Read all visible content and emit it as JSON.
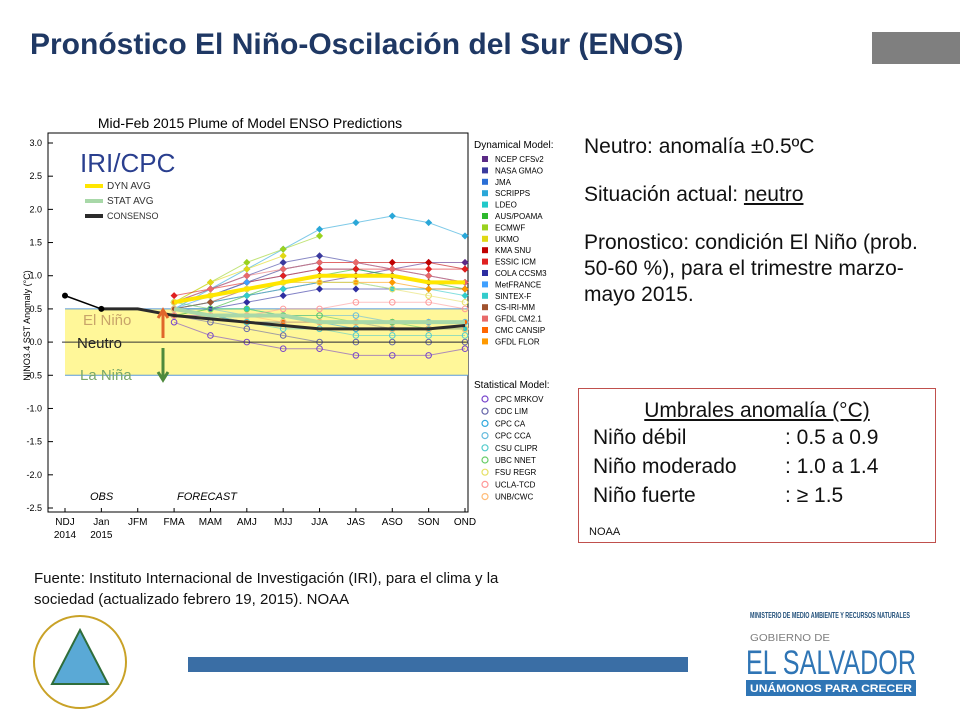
{
  "header": {
    "title": "Pronóstico El Niño-Oscilación del Sur (ENOS)"
  },
  "chart_data": {
    "type": "line",
    "title": "Mid-Feb 2015 Plume of Model ENSO Predictions",
    "y_label": "NINO3.4 SST Anomaly (°C)",
    "categories": [
      "NDJ",
      "Jan",
      "JFM",
      "FMA",
      "MAM",
      "AMJ",
      "MJJ",
      "JJA",
      "JAS",
      "ASO",
      "SON",
      "OND"
    ],
    "year_labels": [
      "2014",
      "2015"
    ],
    "ylim": [
      -2.5,
      3.0
    ],
    "yticks": [
      {
        "value": 3,
        "label": "3.0"
      },
      2.5,
      {
        "value": 2,
        "label": "2.0"
      },
      1.5,
      {
        "value": 1,
        "label": "1.0"
      },
      0.5,
      {
        "value": 0,
        "label": "0.0"
      },
      -0.5,
      {
        "value": -1,
        "label": "-1.0"
      },
      -1.5,
      {
        "value": -2,
        "label": "-2.0"
      },
      -2.5
    ],
    "neutral_band": [
      -0.5,
      0.5
    ],
    "band_color": "#fff799",
    "band_labels": {
      "el_nino": "El Niño",
      "neutro": "Neutro",
      "la_nina": "La Niña"
    },
    "logo_text": "IRI/CPC",
    "period_labels": {
      "obs": "OBS",
      "forecast": "FORECAST"
    },
    "observed": {
      "color": "#000000",
      "values": [
        0.7,
        0.5,
        null,
        null,
        null,
        null,
        null,
        null,
        null,
        null,
        null,
        null
      ]
    },
    "averages": [
      {
        "name": "DYN AVG",
        "color": "#ffe600",
        "values": [
          null,
          null,
          null,
          0.6,
          0.7,
          0.8,
          0.9,
          1.0,
          1.0,
          1.0,
          0.9,
          0.9
        ]
      },
      {
        "name": "STAT AVG",
        "color": "#a8d8a8",
        "values": [
          null,
          null,
          null,
          0.5,
          0.4,
          0.4,
          0.4,
          0.3,
          0.3,
          0.3,
          0.3,
          0.3
        ]
      },
      {
        "name": "CONSENSO",
        "color": "#2b2b2b",
        "values": [
          null,
          0.5,
          0.5,
          0.4,
          0.35,
          0.3,
          0.25,
          0.2,
          0.2,
          0.2,
          0.2,
          0.25
        ]
      }
    ],
    "dynamical": {
      "title": "Dynamical Model:",
      "marker": "square",
      "series": [
        {
          "name": "NCEP CFSv2",
          "color": "#5b2a86",
          "values": [
            null,
            null,
            null,
            0.5,
            0.6,
            0.7,
            0.8,
            0.9,
            1.0,
            1.1,
            1.2,
            1.2
          ]
        },
        {
          "name": "NASA GMAO",
          "color": "#3a3a9e",
          "values": [
            null,
            null,
            null,
            0.6,
            0.8,
            1.0,
            1.2,
            1.3,
            1.2,
            1.1,
            1.0,
            0.9
          ]
        },
        {
          "name": "JMA",
          "color": "#2b6fd6",
          "values": [
            null,
            null,
            null,
            0.6,
            0.7,
            0.9,
            1.0,
            1.1,
            1.1,
            1.0,
            0.9,
            0.9
          ]
        },
        {
          "name": "SCRIPPS",
          "color": "#2aa7d8",
          "values": [
            null,
            null,
            null,
            0.5,
            0.8,
            1.1,
            1.4,
            1.7,
            1.8,
            1.9,
            1.8,
            1.6
          ]
        },
        {
          "name": "LDEO",
          "color": "#22c9c9",
          "values": [
            null,
            null,
            null,
            0.5,
            0.5,
            0.5,
            0.4,
            0.3,
            0.3,
            0.2,
            0.2,
            0.2
          ]
        },
        {
          "name": "AUS/POAMA",
          "color": "#2eb82e",
          "values": [
            null,
            null,
            null,
            0.4,
            0.5,
            0.7,
            0.9,
            1.0,
            1.1,
            1.0,
            0.9,
            0.8
          ]
        },
        {
          "name": "ECMWF",
          "color": "#9ad21f",
          "values": [
            null,
            null,
            null,
            0.6,
            0.9,
            1.2,
            1.4,
            1.6,
            null,
            null,
            null,
            null
          ]
        },
        {
          "name": "UKMO",
          "color": "#e0d815",
          "values": [
            null,
            null,
            null,
            0.6,
            0.9,
            1.1,
            1.3,
            null,
            null,
            null,
            null,
            null
          ]
        },
        {
          "name": "KMA SNU",
          "color": "#c00000",
          "values": [
            null,
            null,
            null,
            0.6,
            0.7,
            0.9,
            1.1,
            1.2,
            1.2,
            1.2,
            1.2,
            1.1
          ]
        },
        {
          "name": "ESSIC ICM",
          "color": "#e02020",
          "values": [
            null,
            null,
            null,
            0.7,
            0.8,
            0.9,
            1.0,
            1.1,
            1.1,
            1.1,
            1.1,
            1.1
          ]
        },
        {
          "name": "COLA CCSM3",
          "color": "#2e2ea0",
          "values": [
            null,
            null,
            null,
            0.5,
            0.5,
            0.6,
            0.7,
            0.8,
            0.8,
            0.8,
            0.8,
            0.8
          ]
        },
        {
          "name": "MetFRANCE",
          "color": "#3fa0ff",
          "values": [
            null,
            null,
            null,
            0.5,
            0.7,
            0.9,
            1.1,
            1.2,
            null,
            null,
            null,
            null
          ]
        },
        {
          "name": "SINTEX-F",
          "color": "#33cccc",
          "values": [
            null,
            null,
            null,
            0.5,
            0.6,
            0.7,
            0.8,
            0.9,
            0.9,
            0.8,
            0.8,
            0.7
          ]
        },
        {
          "name": "CS-IRI-MM",
          "color": "#a0522d",
          "values": [
            null,
            null,
            null,
            0.5,
            0.6,
            0.8,
            0.9,
            1.0,
            1.0,
            1.0,
            0.9,
            0.9
          ]
        },
        {
          "name": "GFDL CM2.1",
          "color": "#e86a6a",
          "values": [
            null,
            null,
            null,
            0.6,
            0.8,
            1.0,
            1.1,
            1.2,
            1.2,
            1.1,
            1.0,
            0.9
          ]
        },
        {
          "name": "CMC CANSIP",
          "color": "#ff6600",
          "values": [
            null,
            null,
            null,
            0.4,
            0.4,
            0.3,
            0.3,
            0.3,
            0.3,
            0.3,
            0.3,
            0.3
          ]
        },
        {
          "name": "GFDL FLOR",
          "color": "#ff9900",
          "values": [
            null,
            null,
            null,
            0.6,
            0.7,
            0.8,
            0.9,
            0.9,
            0.9,
            0.9,
            0.8,
            0.8
          ]
        }
      ]
    },
    "statistical": {
      "title": "Statistical Model:",
      "marker": "circle",
      "series": [
        {
          "name": "CPC MRKOV",
          "color": "#7744cc",
          "values": [
            null,
            null,
            null,
            0.3,
            0.1,
            0.0,
            -0.1,
            -0.1,
            -0.2,
            -0.2,
            -0.2,
            -0.1
          ]
        },
        {
          "name": "CDC LIM",
          "color": "#6666aa",
          "values": [
            null,
            null,
            null,
            0.4,
            0.3,
            0.2,
            0.1,
            0.0,
            0.0,
            0.0,
            0.0,
            0.0
          ]
        },
        {
          "name": "CPC CA",
          "color": "#33aadd",
          "values": [
            null,
            null,
            null,
            0.4,
            0.4,
            0.3,
            0.3,
            0.3,
            0.2,
            0.2,
            0.2,
            0.2
          ]
        },
        {
          "name": "CPC CCA",
          "color": "#66bbdd",
          "values": [
            null,
            null,
            null,
            0.5,
            0.5,
            0.4,
            0.4,
            0.4,
            0.4,
            0.3,
            0.3,
            0.3
          ]
        },
        {
          "name": "CSU CLIPR",
          "color": "#55cccc",
          "values": [
            null,
            null,
            null,
            0.5,
            0.4,
            0.3,
            0.2,
            0.2,
            0.1,
            0.1,
            0.1,
            0.1
          ]
        },
        {
          "name": "UBC NNET",
          "color": "#66cc66",
          "values": [
            null,
            null,
            null,
            0.6,
            0.5,
            0.5,
            0.4,
            0.4,
            0.3,
            0.3,
            0.2,
            0.2
          ]
        },
        {
          "name": "FSU REGR",
          "color": "#e6e066",
          "values": [
            null,
            null,
            null,
            0.6,
            0.7,
            0.8,
            0.9,
            0.9,
            0.9,
            0.8,
            0.7,
            0.6
          ]
        },
        {
          "name": "UCLA-TCD",
          "color": "#ff9999",
          "values": [
            null,
            null,
            null,
            0.4,
            0.4,
            0.4,
            0.5,
            0.5,
            0.6,
            0.6,
            0.6,
            0.5
          ]
        },
        {
          "name": "UNB/CWC",
          "color": "#ffbb77",
          "values": [
            null,
            null,
            null,
            0.5,
            0.4,
            0.4,
            0.3,
            0.3,
            0.3,
            0.2,
            0.2,
            0.2
          ]
        }
      ]
    }
  },
  "notes": {
    "neutro": "Neutro: anomalía ±0.5ºC",
    "situacion_label": "Situación actual: ",
    "situacion_value": "neutro",
    "pronostico": "Pronostico: condición El Niño (prob. 50-60 %), para el trimestre marzo-mayo 2015."
  },
  "thresholds": {
    "title": "Umbrales anomalía (°C)",
    "rows": [
      [
        "Niño débil",
        ": 0.5 a 0.9"
      ],
      [
        "Niño moderado",
        ": 1.0 a 1.4"
      ],
      [
        "Niño fuerte",
        ": ≥ 1.5"
      ]
    ],
    "source": "NOAA"
  },
  "footer": {
    "source": "Fuente: Instituto Internacional de Investigación (IRI), para el clima y la sociedad (actualizado febrero 19, 2015). NOAA",
    "ministry": "MINISTERIO DE MEDIO AMBIENTE Y RECURSOS NATURALES",
    "gobierno": "GOBIERNO DE",
    "country": "EL SALVADOR",
    "slogan": "UNÁMONOS PARA CRECER"
  }
}
